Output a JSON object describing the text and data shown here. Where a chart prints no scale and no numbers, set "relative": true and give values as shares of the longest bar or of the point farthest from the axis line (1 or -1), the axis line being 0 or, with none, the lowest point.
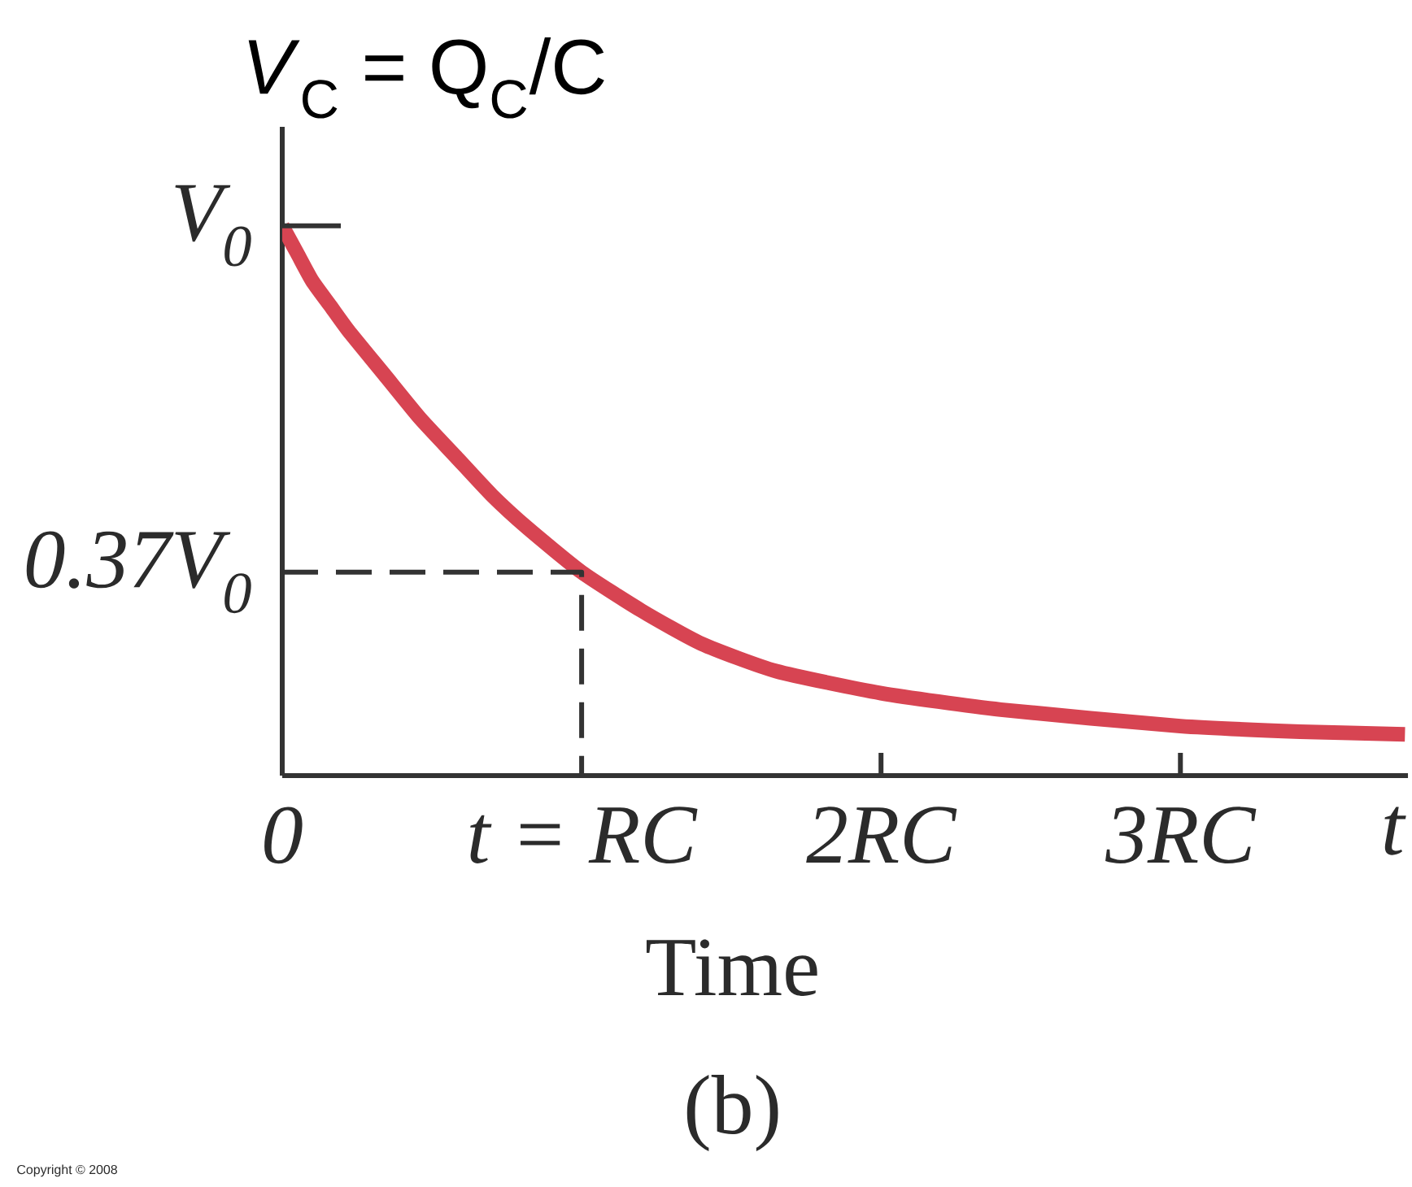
{
  "chart_data": {
    "type": "line",
    "relative": true,
    "ylabel": "*V*$_{C}$ = Q$_{C}$/C",
    "xlabel": "Time",
    "annotations": [
      "t",
      "(b)",
      "Copyright © 2008",
      {
        "text": "V$_{0}$",
        "x": 0,
        "y": 1
      },
      {
        "text": "0.37V$_{0}$",
        "x": 0,
        "y": 0.37
      }
    ],
    "xlim": [
      0,
      3.76
    ],
    "xticks": [
      0,
      {
        "value": 1,
        "label": "t = RC"
      },
      {
        "value": 2,
        "label": "2RC"
      },
      {
        "value": 3,
        "label": "3RC"
      }
    ],
    "series": [
      {
        "color": "#d74452",
        "x": [
          0,
          0.05,
          0.1,
          0.16,
          0.22,
          0.34,
          0.46,
          0.58,
          0.7,
          0.82,
          1.0,
          1.2,
          1.4,
          1.65,
          2.0,
          2.4,
          3.0,
          3.4,
          3.75
        ],
        "values": [
          1.0,
          0.95,
          0.9,
          0.855,
          0.81,
          0.73,
          0.65,
          0.58,
          0.51,
          0.45,
          0.37,
          0.3,
          0.24,
          0.19,
          0.15,
          0.12,
          0.09,
          0.08,
          0.075
        ]
      },
      {
        "type": "line",
        "line_style": "dashed",
        "color": "#333333",
        "x": [
          0,
          1,
          1
        ],
        "values": [
          0.37,
          0.37,
          0
        ]
      }
    ]
  }
}
